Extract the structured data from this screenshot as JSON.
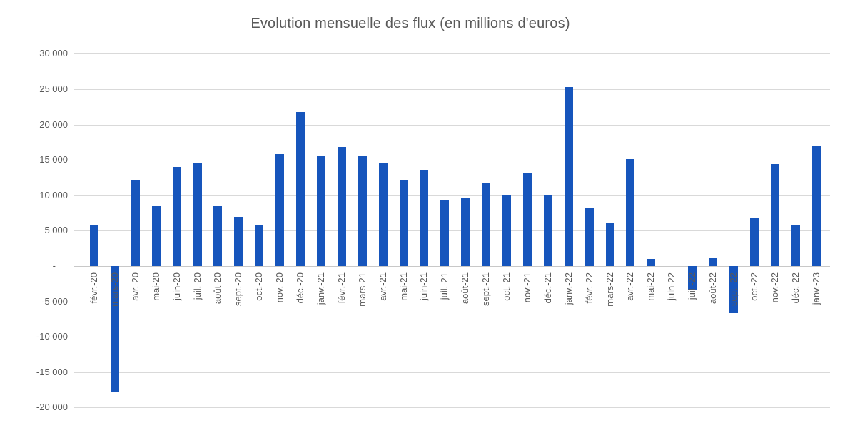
{
  "colors": {
    "bar": "#1655BC",
    "gridline": "#D9D9D9",
    "zero_line": "#C8C8C8",
    "axis_text": "#595959",
    "title_text": "#595959",
    "background": "#FFFFFF"
  },
  "chart_data": {
    "type": "bar",
    "title": "Evolution mensuelle des flux (en millions d'euros)",
    "xlabel": "",
    "ylabel": "",
    "ylim": [
      -20000,
      30000
    ],
    "ytick_step": 5000,
    "grid": true,
    "legend": "none",
    "categories": [
      "févr.-20",
      "mars-20",
      "avr.-20",
      "mai-20",
      "juin-20",
      "juil.-20",
      "août-20",
      "sept.-20",
      "oct.-20",
      "nov.-20",
      "déc.-20",
      "janv.-21",
      "févr.-21",
      "mars-21",
      "avr.-21",
      "mai-21",
      "juin-21",
      "juil.-21",
      "août-21",
      "sept.-21",
      "oct.-21",
      "nov.-21",
      "déc.-21",
      "janv.-22",
      "févr.-22",
      "mars-22",
      "avr.-22",
      "mai-22",
      "juin-22",
      "juil.-22",
      "août-22",
      "sept.-22",
      "oct.-22",
      "nov.-22",
      "déc.-22",
      "janv.-23"
    ],
    "values": [
      5800,
      -17700,
      12100,
      8500,
      14000,
      14500,
      8500,
      7000,
      5900,
      15800,
      21800,
      15600,
      16800,
      15500,
      14600,
      12100,
      13600,
      9300,
      9600,
      11800,
      10100,
      13100,
      10100,
      25300,
      8200,
      6100,
      15100,
      1000,
      0,
      -3400,
      1100,
      -6600,
      6800,
      14400,
      5900,
      17000
    ],
    "yticks": [
      {
        "value": 30000,
        "label": "30 000"
      },
      {
        "value": 25000,
        "label": "25 000"
      },
      {
        "value": 20000,
        "label": "20 000"
      },
      {
        "value": 15000,
        "label": "15 000"
      },
      {
        "value": 10000,
        "label": "10 000"
      },
      {
        "value": 5000,
        "label": "5 000"
      },
      {
        "value": 0,
        "label": "-"
      },
      {
        "value": -5000,
        "label": "-5 000"
      },
      {
        "value": -10000,
        "label": "-10 000"
      },
      {
        "value": -15000,
        "label": "-15 000"
      },
      {
        "value": -20000,
        "label": "-20 000"
      }
    ]
  }
}
